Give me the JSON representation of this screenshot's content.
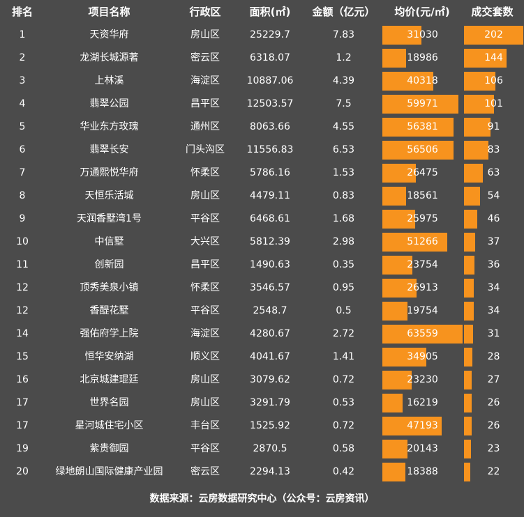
{
  "headers": {
    "rank": "排名",
    "name": "项目名称",
    "district": "行政区",
    "area": "面积(㎡)",
    "amount": "金额（亿元）",
    "price": "均价(元/㎡)",
    "count": "成交套数"
  },
  "source": "数据来源：云房数据研究中心（公众号：云房资讯）",
  "colors": {
    "background": "#4b4b4b",
    "bar": "#f7931e",
    "text": "#ffffff"
  },
  "chart_data": {
    "type": "table",
    "bar_columns": [
      "price",
      "count"
    ],
    "rows": [
      {
        "rank": "1",
        "name": "天资华府",
        "district": "房山区",
        "area": "25229.7",
        "amount": "7.83",
        "price": 31030,
        "count": 202
      },
      {
        "rank": "2",
        "name": "龙湖长城源著",
        "district": "密云区",
        "area": "6318.07",
        "amount": "1.2",
        "price": 18986,
        "count": 144
      },
      {
        "rank": "3",
        "name": "上林溪",
        "district": "海淀区",
        "area": "10887.06",
        "amount": "4.39",
        "price": 40318,
        "count": 106
      },
      {
        "rank": "4",
        "name": "翡翠公园",
        "district": "昌平区",
        "area": "12503.57",
        "amount": "7.5",
        "price": 59971,
        "count": 101
      },
      {
        "rank": "5",
        "name": "华业东方玫瑰",
        "district": "通州区",
        "area": "8063.66",
        "amount": "4.55",
        "price": 56381,
        "count": 91
      },
      {
        "rank": "6",
        "name": "翡翠长安",
        "district": "门头沟区",
        "area": "11556.83",
        "amount": "6.53",
        "price": 56506,
        "count": 83
      },
      {
        "rank": "7",
        "name": "万通熙悦华府",
        "district": "怀柔区",
        "area": "5786.16",
        "amount": "1.53",
        "price": 26475,
        "count": 63
      },
      {
        "rank": "8",
        "name": "天恒乐活城",
        "district": "房山区",
        "area": "4479.11",
        "amount": "0.83",
        "price": 18561,
        "count": 54
      },
      {
        "rank": "9",
        "name": "天润香墅湾1号",
        "district": "平谷区",
        "area": "6468.61",
        "amount": "1.68",
        "price": 25975,
        "count": 46
      },
      {
        "rank": "10",
        "name": "中信墅",
        "district": "大兴区",
        "area": "5812.39",
        "amount": "2.98",
        "price": 51266,
        "count": 37
      },
      {
        "rank": "11",
        "name": "创新园",
        "district": "昌平区",
        "area": "1490.63",
        "amount": "0.35",
        "price": 23754,
        "count": 36
      },
      {
        "rank": "12",
        "name": "顶秀美泉小镇",
        "district": "怀柔区",
        "area": "3546.57",
        "amount": "0.95",
        "price": 26913,
        "count": 34
      },
      {
        "rank": "12",
        "name": "香醍花墅",
        "district": "平谷区",
        "area": "2548.7",
        "amount": "0.5",
        "price": 19754,
        "count": 34
      },
      {
        "rank": "14",
        "name": "强佑府学上院",
        "district": "海淀区",
        "area": "4280.67",
        "amount": "2.72",
        "price": 63559,
        "count": 31
      },
      {
        "rank": "15",
        "name": "恒华安纳湖",
        "district": "顺义区",
        "area": "4041.67",
        "amount": "1.41",
        "price": 34905,
        "count": 28
      },
      {
        "rank": "16",
        "name": "北京城建琨廷",
        "district": "房山区",
        "area": "3079.62",
        "amount": "0.72",
        "price": 23230,
        "count": 27
      },
      {
        "rank": "17",
        "name": "世界名园",
        "district": "房山区",
        "area": "3291.79",
        "amount": "0.53",
        "price": 16219,
        "count": 26
      },
      {
        "rank": "17",
        "name": "星河城住宅小区",
        "district": "丰台区",
        "area": "1525.92",
        "amount": "0.72",
        "price": 47193,
        "count": 26
      },
      {
        "rank": "19",
        "name": "紫贵御园",
        "district": "平谷区",
        "area": "2870.5",
        "amount": "0.58",
        "price": 20143,
        "count": 23
      },
      {
        "rank": "20",
        "name": "绿地朗山国际健康产业园",
        "district": "密云区",
        "area": "2294.13",
        "amount": "0.42",
        "price": 18388,
        "count": 22
      }
    ]
  }
}
